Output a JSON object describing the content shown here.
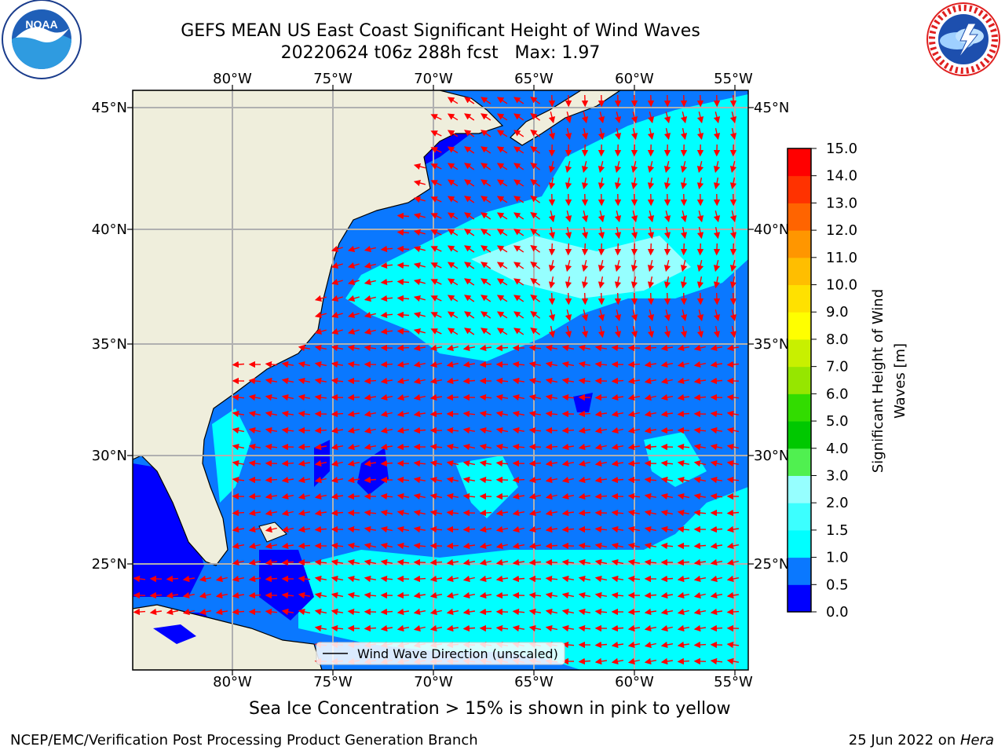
{
  "header": {
    "title_line1": "GEFS MEAN US East Coast Significant Height of Wind Waves",
    "title_line2": "20220624 t06z 288h fcst   Max: 1.97"
  },
  "logos": {
    "left": {
      "name": "noaa-logo",
      "text": "NOAA",
      "ring_text": "NATIONAL OCEANIC AND ATMOSPHERIC ADMINISTRATION · U.S. DEPARTMENT OF COMMERCE"
    },
    "right": {
      "name": "nws-logo",
      "ring_text": "NATIONAL WEATHER SERVICE"
    }
  },
  "map": {
    "lon_labels": [
      "80°W",
      "75°W",
      "70°W",
      "65°W",
      "60°W",
      "55°W"
    ],
    "lat_labels": [
      "45°N",
      "40°N",
      "35°N",
      "30°N",
      "25°N"
    ],
    "legend_label": "Wind Wave Direction (unscaled)",
    "land_color": "#efeedc",
    "arrow_color": "#ff0000"
  },
  "colorbar": {
    "label_line1": "Significant Height of Wind",
    "label_line2": "Waves [m]",
    "ticks": [
      "0.0",
      "0.5",
      "1.0",
      "1.5",
      "2.0",
      "3.0",
      "4.0",
      "5.0",
      "6.0",
      "7.0",
      "8.0",
      "9.0",
      "10.0",
      "11.0",
      "12.0",
      "13.0",
      "14.0",
      "15.0"
    ],
    "colors": [
      "#0000ff",
      "#0a78ff",
      "#00ffff",
      "#3cffff",
      "#96ffff",
      "#50f050",
      "#00c800",
      "#32dc00",
      "#96e600",
      "#c8f000",
      "#ffff00",
      "#ffe100",
      "#ffbe00",
      "#ff9600",
      "#ff6400",
      "#ff3200",
      "#ff0000"
    ]
  },
  "notes": {
    "ice": "Sea Ice Concentration > 15% is shown in pink to yellow",
    "branch": "NCEP/EMC/Verification Post Processing Product Generation Branch",
    "date": "25 Jun 2022 on ",
    "host": "Hera"
  }
}
